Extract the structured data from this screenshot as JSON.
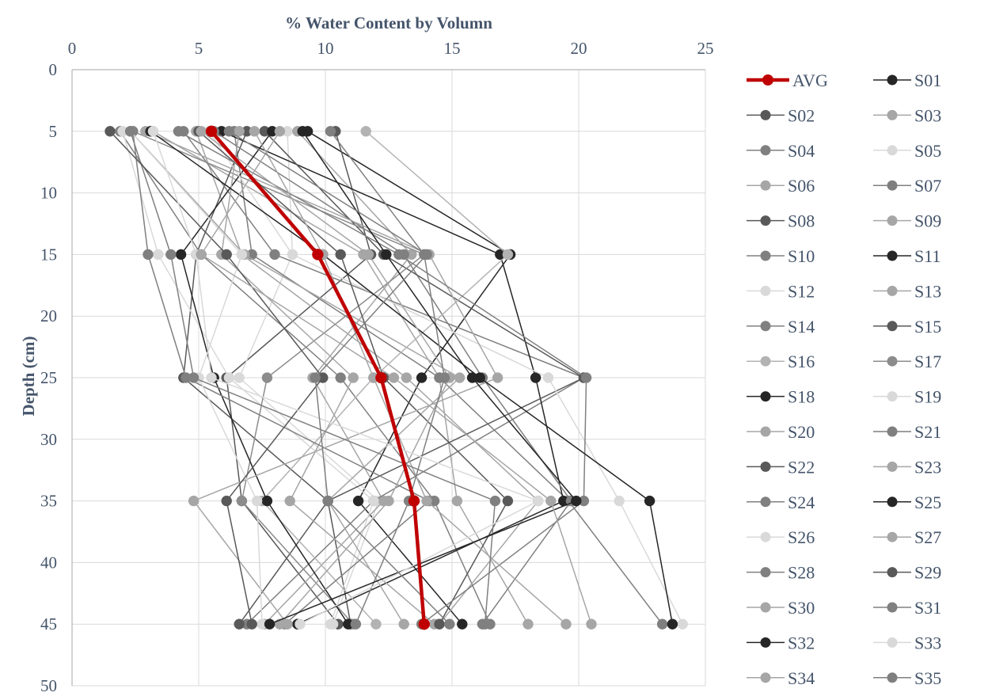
{
  "chart_data": {
    "type": "line",
    "title": "",
    "xlabel": "% Water Content by Volumn",
    "ylabel": "Depth (cm)",
    "xlim": [
      0,
      25
    ],
    "ylim": [
      0,
      50
    ],
    "x_axis_position": "top",
    "y_axis_inverted": true,
    "x_ticks": [
      "0",
      "5",
      "10",
      "15",
      "20",
      "25"
    ],
    "y_ticks": [
      "0",
      "5",
      "10",
      "15",
      "20",
      "25",
      "30",
      "35",
      "40",
      "45",
      "50"
    ],
    "grid": true,
    "legend_position": "right",
    "depths": [
      5,
      15,
      25,
      35,
      45
    ],
    "series": [
      {
        "name": "AVG",
        "color": "#c00000",
        "highlight": true,
        "x": [
          5.5,
          9.7,
          12.2,
          13.5,
          13.9
        ]
      },
      {
        "name": "S01",
        "color": "#262626",
        "x": [
          9.3,
          17.3,
          13.8,
          11.3,
          15.4
        ]
      },
      {
        "name": "S02",
        "color": "#595959",
        "x": [
          10.4,
          11.8,
          6.1,
          6.7,
          10.5
        ]
      },
      {
        "name": "S03",
        "color": "#a6a6a6",
        "x": [
          3.2,
          11.5,
          14.5,
          15.2,
          18.0
        ]
      },
      {
        "name": "S04",
        "color": "#808080",
        "x": [
          1.9,
          5.1,
          10.6,
          14.3,
          16.5
        ]
      },
      {
        "name": "S05",
        "color": "#d9d9d9",
        "x": [
          8.5,
          8.7,
          6.6,
          12.1,
          10.3
        ]
      },
      {
        "name": "S06",
        "color": "#a6a6a6",
        "x": [
          4.9,
          6.7,
          13.2,
          18.4,
          14.5
        ]
      },
      {
        "name": "S07",
        "color": "#7f7f7f",
        "x": [
          6.4,
          7.1,
          14.5,
          19.6,
          23.3
        ]
      },
      {
        "name": "S08",
        "color": "#595959",
        "x": [
          6.9,
          4.9,
          4.4,
          10.1,
          11.0
        ]
      },
      {
        "name": "S09",
        "color": "#a6a6a6",
        "x": [
          8.9,
          13.4,
          9.5,
          12.3,
          7.6
        ]
      },
      {
        "name": "S10",
        "color": "#808080",
        "x": [
          4.4,
          8.0,
          20.2,
          11.9,
          6.9
        ]
      },
      {
        "name": "S11",
        "color": "#262626",
        "x": [
          5.9,
          16.9,
          18.3,
          19.4,
          8.9
        ]
      },
      {
        "name": "S12",
        "color": "#d9d9d9",
        "x": [
          2.0,
          3.4,
          6.2,
          11.9,
          10.2
        ]
      },
      {
        "name": "S13",
        "color": "#a6a6a6",
        "x": [
          2.3,
          6.8,
          15.3,
          10.1,
          13.1
        ]
      },
      {
        "name": "S14",
        "color": "#808080",
        "x": [
          5.6,
          13.1,
          16.2,
          19.7,
          16.2
        ]
      },
      {
        "name": "S15",
        "color": "#595959",
        "x": [
          7.6,
          12.3,
          20.2,
          10.1,
          6.6
        ]
      },
      {
        "name": "S16",
        "color": "#b3b3b3",
        "x": [
          11.6,
          17.2,
          11.9,
          7.5,
          12.0
        ]
      },
      {
        "name": "S17",
        "color": "#8c8c8c",
        "x": [
          2.4,
          13.9,
          7.7,
          6.7,
          11.1
        ]
      },
      {
        "name": "S18",
        "color": "#262626",
        "x": [
          7.9,
          4.3,
          5.6,
          7.7,
          10.9
        ]
      },
      {
        "name": "S19",
        "color": "#d9d9d9",
        "x": [
          5.4,
          8.7,
          18.8,
          21.6,
          24.1
        ]
      },
      {
        "name": "S20",
        "color": "#a6a6a6",
        "x": [
          6.6,
          5.9,
          11.1,
          8.6,
          14.3
        ]
      },
      {
        "name": "S21",
        "color": "#7f7f7f",
        "x": [
          2.4,
          3.0,
          4.5,
          14.1,
          8.4
        ]
      },
      {
        "name": "S22",
        "color": "#595959",
        "x": [
          5.0,
          10.6,
          12.3,
          17.2,
          14.5
        ]
      },
      {
        "name": "S23",
        "color": "#a6a6a6",
        "x": [
          2.9,
          14.1,
          16.8,
          4.8,
          8.5
        ]
      },
      {
        "name": "S24",
        "color": "#808080",
        "x": [
          4.2,
          12.9,
          20.3,
          20.2,
          13.8
        ]
      },
      {
        "name": "S25",
        "color": "#262626",
        "x": [
          3.1,
          9.9,
          16.1,
          22.8,
          23.7
        ]
      },
      {
        "name": "S26",
        "color": "#d9d9d9",
        "x": [
          2.3,
          6.7,
          5.0,
          7.3,
          7.5
        ]
      },
      {
        "name": "S27",
        "color": "#a6a6a6",
        "x": [
          7.2,
          9.9,
          11.9,
          14.0,
          19.5
        ]
      },
      {
        "name": "S28",
        "color": "#808080",
        "x": [
          2.3,
          3.9,
          4.8,
          16.7,
          16.3
        ]
      },
      {
        "name": "S29",
        "color": "#595959",
        "x": [
          1.5,
          6.1,
          9.9,
          6.1,
          7.1
        ]
      },
      {
        "name": "S30",
        "color": "#a6a6a6",
        "x": [
          5.1,
          11.7,
          14.9,
          12.5,
          8.2
        ]
      },
      {
        "name": "S31",
        "color": "#808080",
        "x": [
          10.2,
          13.9,
          14.7,
          13.3,
          11.2
        ]
      },
      {
        "name": "S32",
        "color": "#262626",
        "x": [
          9.1,
          12.4,
          15.8,
          19.9,
          7.8
        ]
      },
      {
        "name": "S33",
        "color": "#d9d9d9",
        "x": [
          3.2,
          4.9,
          5.5,
          18.4,
          9.0
        ]
      },
      {
        "name": "S34",
        "color": "#a6a6a6",
        "x": [
          8.2,
          5.1,
          12.7,
          18.9,
          20.5
        ]
      },
      {
        "name": "S35",
        "color": "#7f7f7f",
        "x": [
          6.2,
          14.0,
          9.6,
          10.1,
          14.9
        ]
      }
    ]
  }
}
